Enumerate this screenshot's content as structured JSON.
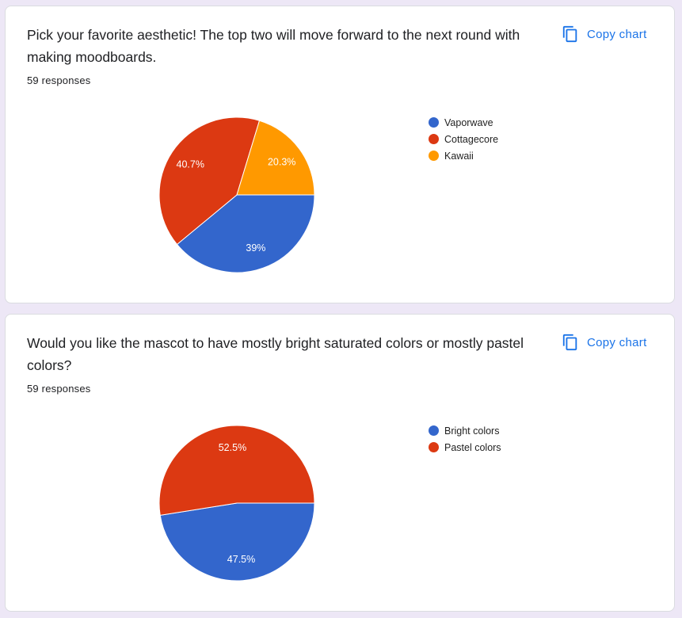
{
  "ui": {
    "copy_label": "Copy chart"
  },
  "colors": {
    "blue": "#3366cc",
    "red": "#dc3912",
    "orange": "#ff9900",
    "link": "#1a73e8"
  },
  "cards": [
    {
      "question": "Pick your favorite aesthetic! The top two will move forward to the next round with making moodboards.",
      "responses": "59 responses"
    },
    {
      "question": "Would you like the mascot to have mostly bright saturated colors or mostly pastel colors?",
      "responses": "59 responses"
    }
  ],
  "chart_data": [
    {
      "type": "pie",
      "title": "",
      "legend_position": "right",
      "categories": [
        "Vaporwave",
        "Cottagecore",
        "Kawaii"
      ],
      "values": [
        39,
        40.7,
        20.3
      ],
      "labels": [
        "39%",
        "40.7%",
        "20.3%"
      ],
      "colors": [
        "#3366cc",
        "#dc3912",
        "#ff9900"
      ]
    },
    {
      "type": "pie",
      "title": "",
      "legend_position": "right",
      "categories": [
        "Bright colors",
        "Pastel colors"
      ],
      "values": [
        47.5,
        52.5
      ],
      "labels": [
        "47.5%",
        "52.5%"
      ],
      "colors": [
        "#3366cc",
        "#dc3912"
      ]
    }
  ]
}
